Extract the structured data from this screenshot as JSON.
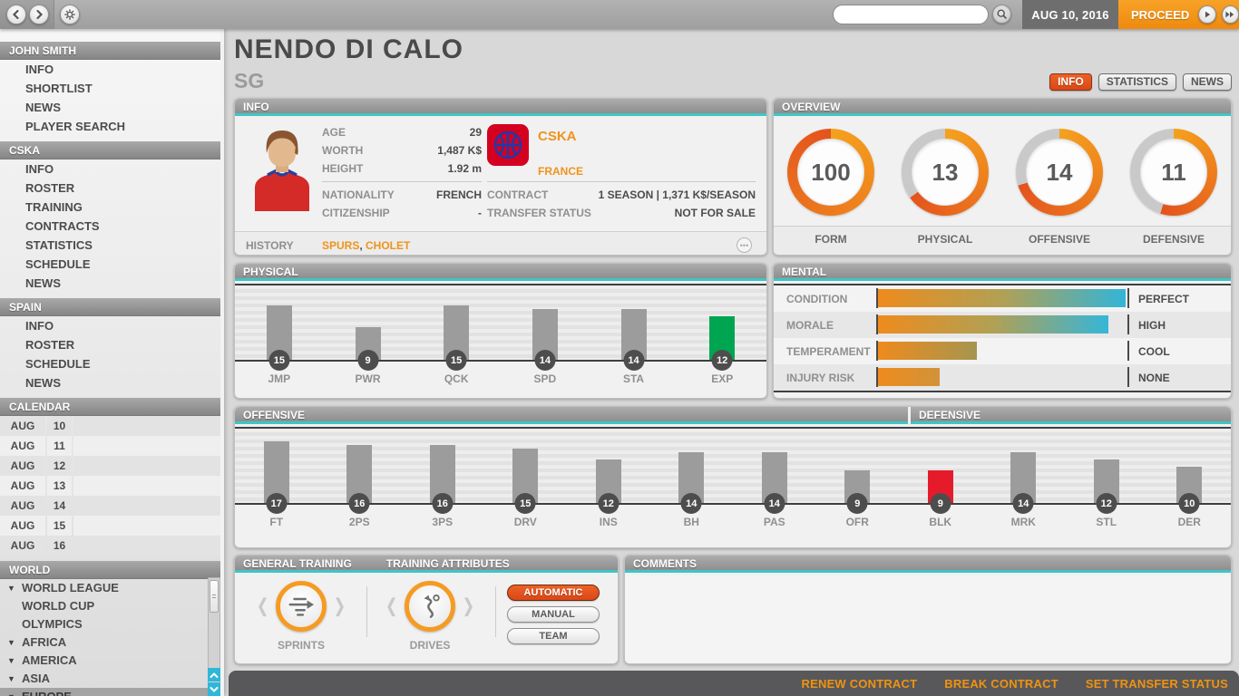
{
  "colors": {
    "accent_orange": "#f0931b",
    "active_orange_red": "#e4551d",
    "cyan_underline": "#3ec6c6",
    "scroll_cyan": "#2fb7d8",
    "bar_gray": "#9c9c9c",
    "bar_green": "#00a551",
    "bar_red": "#e51b2c"
  },
  "topbar": {
    "date": "AUG 10, 2016",
    "proceed_label": "PROCEED",
    "search_placeholder": ""
  },
  "sidebar": {
    "sections": [
      {
        "title": "JOHN SMITH",
        "items": [
          "INFO",
          "SHORTLIST",
          "NEWS",
          "PLAYER SEARCH"
        ]
      },
      {
        "title": "CSKA",
        "items": [
          "INFO",
          "ROSTER",
          "TRAINING",
          "CONTRACTS",
          "STATISTICS",
          "SCHEDULE",
          "NEWS"
        ]
      },
      {
        "title": "SPAIN",
        "items": [
          "INFO",
          "ROSTER",
          "SCHEDULE",
          "NEWS"
        ]
      }
    ],
    "calendar": {
      "title": "CALENDAR",
      "rows": [
        [
          "AUG",
          "10"
        ],
        [
          "AUG",
          "11"
        ],
        [
          "AUG",
          "12"
        ],
        [
          "AUG",
          "13"
        ],
        [
          "AUG",
          "14"
        ],
        [
          "AUG",
          "15"
        ],
        [
          "AUG",
          "16"
        ]
      ]
    },
    "world": {
      "title": "WORLD",
      "items": [
        {
          "label": "WORLD LEAGUE",
          "arrow": true,
          "selected": false
        },
        {
          "label": "WORLD CUP",
          "arrow": false,
          "selected": false
        },
        {
          "label": "OLYMPICS",
          "arrow": false,
          "selected": false
        },
        {
          "label": "AFRICA",
          "arrow": true,
          "selected": false
        },
        {
          "label": "AMERICA",
          "arrow": true,
          "selected": false
        },
        {
          "label": "ASIA",
          "arrow": true,
          "selected": false
        },
        {
          "label": "EUROPE",
          "arrow": true,
          "selected": true
        }
      ]
    }
  },
  "player": {
    "name": "NENDO DI CALO",
    "position": "SG"
  },
  "tabs": [
    {
      "label": "INFO",
      "active": true
    },
    {
      "label": "STATISTICS",
      "active": false
    },
    {
      "label": "NEWS",
      "active": false
    }
  ],
  "info_panel": {
    "title": "INFO",
    "age_label": "AGE",
    "age": "29",
    "worth_label": "WORTH",
    "worth": "1,487 K$",
    "height_label": "HEIGHT",
    "height": "1.92 m",
    "nationality_label": "NATIONALITY",
    "nationality": "FRENCH",
    "citizenship_label": "CITIZENSHIP",
    "citizenship": "-",
    "club": "CSKA",
    "country": "FRANCE",
    "contract_label": "CONTRACT",
    "contract": "1 SEASON | 1,371 K$/SEASON",
    "transfer_label": "TRANSFER STATUS",
    "transfer": "NOT FOR SALE",
    "history_label": "HISTORY",
    "history_links": [
      "SPURS",
      "CHOLET"
    ]
  },
  "overview_panel": {
    "title": "OVERVIEW"
  },
  "physical_panel": {
    "title": "PHYSICAL"
  },
  "mental_panel": {
    "title": "MENTAL"
  },
  "offensive_title": "OFFENSIVE",
  "defensive_title": "DEFENSIVE",
  "chart_data": [
    {
      "type": "gauge",
      "title": "OVERVIEW",
      "items": [
        {
          "label": "FORM",
          "value": 100,
          "max": 100
        },
        {
          "label": "PHYSICAL",
          "value": 13,
          "max": 20
        },
        {
          "label": "OFFENSIVE",
          "value": 14,
          "max": 20
        },
        {
          "label": "DEFENSIVE",
          "value": 11,
          "max": 20
        }
      ]
    },
    {
      "type": "bar",
      "title": "PHYSICAL",
      "ylim": [
        0,
        20
      ],
      "categories": [
        "JMP",
        "PWR",
        "QCK",
        "SPD",
        "STA",
        "EXP"
      ],
      "values": [
        15,
        9,
        15,
        14,
        14,
        12
      ],
      "bar_colors": [
        "#9c9c9c",
        "#9c9c9c",
        "#9c9c9c",
        "#9c9c9c",
        "#9c9c9c",
        "#00a551"
      ]
    },
    {
      "type": "bar",
      "title": "OFFENSIVE",
      "ylim": [
        0,
        20
      ],
      "categories": [
        "FT",
        "2PS",
        "3PS",
        "DRV",
        "INS",
        "BH",
        "PAS",
        "OFR"
      ],
      "values": [
        17,
        16,
        16,
        15,
        12,
        14,
        14,
        9
      ],
      "bar_colors": [
        "#9c9c9c",
        "#9c9c9c",
        "#9c9c9c",
        "#9c9c9c",
        "#9c9c9c",
        "#9c9c9c",
        "#9c9c9c",
        "#9c9c9c"
      ]
    },
    {
      "type": "bar",
      "title": "DEFENSIVE",
      "ylim": [
        0,
        20
      ],
      "categories": [
        "BLK",
        "MRK",
        "STL",
        "DER"
      ],
      "values": [
        9,
        14,
        12,
        10
      ],
      "bar_colors": [
        "#e51b2c",
        "#9c9c9c",
        "#9c9c9c",
        "#9c9c9c"
      ]
    },
    {
      "type": "meter",
      "title": "MENTAL",
      "rows": [
        {
          "label": "CONDITION",
          "status": "PERFECT",
          "percent": 100,
          "gradient": [
            "#ee8b1d",
            "#b1a054",
            "#32b5d8"
          ]
        },
        {
          "label": "MORALE",
          "status": "HIGH",
          "percent": 93,
          "gradient": [
            "#ee8b1d",
            "#b1a054",
            "#35b6d8"
          ]
        },
        {
          "label": "TEMPERAMENT",
          "status": "COOL",
          "percent": 40,
          "gradient": [
            "#ee8b1d",
            "#a6954f"
          ]
        },
        {
          "label": "INJURY RISK",
          "status": "NONE",
          "percent": 25,
          "gradient": [
            "#ee8b1d",
            "#d19339"
          ]
        }
      ]
    }
  ],
  "training_panel": {
    "titles": [
      "GENERAL TRAINING",
      "TRAINING ATTRIBUTES"
    ],
    "groups": [
      {
        "label": "SPRINTS",
        "icon": "sprint-icon"
      },
      {
        "label": "DRIVES",
        "icon": "drives-icon"
      }
    ],
    "buttons": [
      {
        "label": "AUTOMATIC",
        "active": true
      },
      {
        "label": "MANUAL",
        "active": false
      },
      {
        "label": "TEAM",
        "active": false
      }
    ]
  },
  "comments_panel": {
    "title": "COMMENTS",
    "body": ""
  },
  "footer": {
    "links": [
      "RENEW CONTRACT",
      "BREAK CONTRACT",
      "SET TRANSFER STATUS"
    ]
  }
}
